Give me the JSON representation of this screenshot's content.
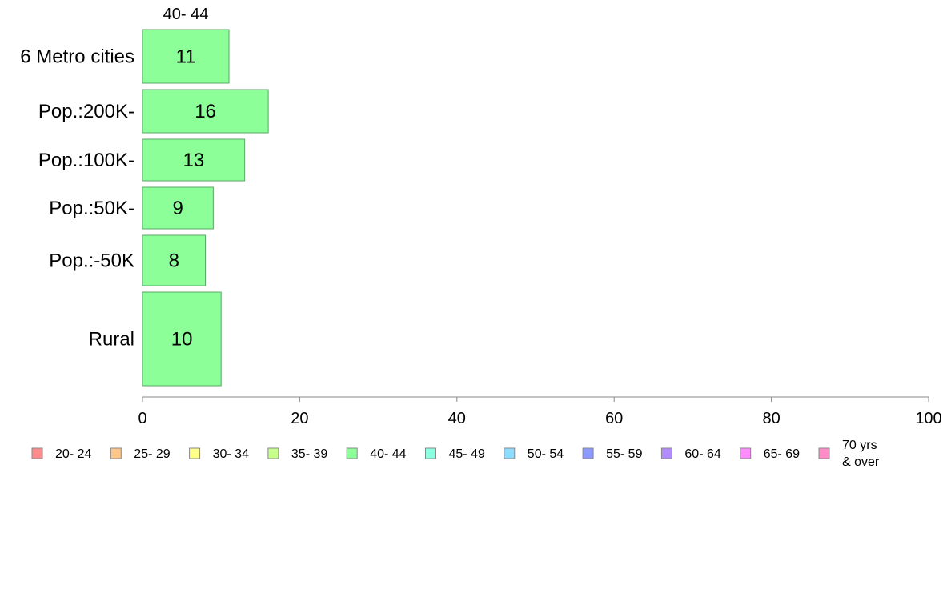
{
  "chart_data": {
    "type": "bar",
    "orientation": "horizontal",
    "title": "",
    "series_header": "40- 44",
    "categories": [
      "6 Metro cities",
      "Pop.:200K-",
      "Pop.:100K-",
      "Pop.:50K-",
      "Pop.:-50K",
      "Rural"
    ],
    "series": [
      {
        "name": "40- 44",
        "values": [
          11,
          16,
          13,
          9,
          8,
          10
        ],
        "color": "#8cff99"
      }
    ],
    "xlim": [
      0,
      100
    ],
    "xticks": [
      "0",
      "20",
      "40",
      "60",
      "80",
      "100"
    ],
    "grid": false,
    "legend_position": "bottom",
    "legend": [
      {
        "label": "20- 24",
        "color": "#ff8c8c"
      },
      {
        "label": "25- 29",
        "color": "#ffc68c"
      },
      {
        "label": "30- 34",
        "color": "#ffff8c"
      },
      {
        "label": "35- 39",
        "color": "#c6ff8c"
      },
      {
        "label": "40- 44",
        "color": "#8cff99"
      },
      {
        "label": "45- 49",
        "color": "#8cffe0"
      },
      {
        "label": "50- 54",
        "color": "#8cdcff"
      },
      {
        "label": "55- 59",
        "color": "#8c99ff"
      },
      {
        "label": "60- 64",
        "color": "#b28cff"
      },
      {
        "label": "65- 69",
        "color": "#ff8cff"
      },
      {
        "label": "70 yrs\n& over",
        "color": "#ff8cc6"
      }
    ]
  }
}
